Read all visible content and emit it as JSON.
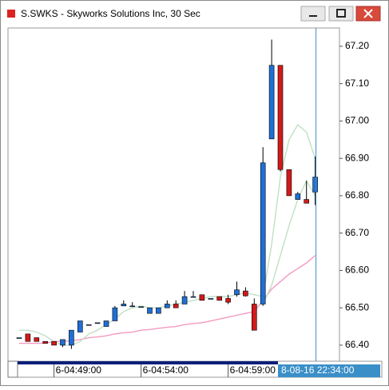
{
  "chart_data": {
    "type": "candlestick",
    "title": "S.SWKS - Skyworks Solutions Inc, 30 Sec",
    "categories": [
      null,
      null,
      null,
      null,
      "6-04:49:00",
      null,
      null,
      null,
      null,
      null,
      null,
      null,
      null,
      null,
      "6-04:54:00",
      null,
      null,
      null,
      null,
      null,
      null,
      null,
      null,
      null,
      "6-04:59:00",
      null,
      null,
      null,
      null,
      null,
      null,
      null,
      null,
      null,
      null
    ],
    "cursor_label": "8-08-16 22:34:00",
    "open": [
      66.42,
      66.43,
      66.42,
      66.41,
      66.41,
      66.4,
      66.4,
      66.435,
      66.455,
      66.46,
      66.45,
      66.465,
      66.505,
      66.505,
      66.503,
      66.485,
      66.485,
      66.5,
      66.51,
      66.51,
      66.53,
      66.535,
      66.525,
      66.53,
      66.525,
      66.535,
      66.545,
      66.51,
      66.51,
      66.952,
      67.149,
      66.87,
      66.79,
      66.79,
      66.81
    ],
    "high": [
      66.42,
      66.43,
      66.42,
      66.41,
      66.41,
      66.415,
      66.44,
      66.465,
      66.455,
      66.46,
      66.465,
      66.505,
      66.52,
      66.515,
      66.503,
      66.5,
      66.5,
      66.52,
      66.52,
      66.545,
      66.545,
      66.535,
      66.525,
      66.53,
      66.535,
      66.57,
      66.555,
      66.525,
      66.93,
      67.218,
      67.149,
      66.87,
      66.81,
      66.84,
      66.905
    ],
    "low": [
      66.42,
      66.41,
      66.41,
      66.405,
      66.4,
      66.395,
      66.39,
      66.435,
      66.455,
      66.46,
      66.45,
      66.465,
      66.505,
      66.505,
      66.503,
      66.485,
      66.485,
      66.5,
      66.5,
      66.51,
      66.53,
      66.52,
      66.525,
      66.52,
      66.51,
      66.53,
      66.53,
      66.44,
      66.505,
      66.952,
      66.865,
      66.8,
      66.79,
      66.78,
      66.775
    ],
    "close": [
      66.42,
      66.41,
      66.41,
      66.405,
      66.4,
      66.415,
      66.44,
      66.465,
      66.455,
      66.46,
      66.465,
      66.5,
      66.51,
      66.505,
      66.503,
      66.5,
      66.5,
      66.51,
      66.5,
      66.53,
      66.53,
      66.52,
      66.525,
      66.52,
      66.515,
      66.548,
      66.532,
      66.44,
      66.888,
      67.149,
      66.87,
      66.8,
      66.805,
      66.78,
      66.85
    ],
    "up_color": "#1f6fd6",
    "down_color": "#d11a1a",
    "series": [
      {
        "color": "#f49ac1",
        "values": [
          66.405,
          66.405,
          66.405,
          66.405,
          66.41,
          66.41,
          66.412,
          66.415,
          66.42,
          66.422,
          66.425,
          66.43,
          66.433,
          66.435,
          66.44,
          66.442,
          66.445,
          66.448,
          66.45,
          66.455,
          66.458,
          66.46,
          66.465,
          66.47,
          66.475,
          66.48,
          66.485,
          66.49,
          66.52,
          66.55,
          66.57,
          66.59,
          66.605,
          66.62,
          66.64
        ]
      },
      {
        "color": "#bfe0c4",
        "values": [
          66.44,
          66.44,
          66.435,
          66.425,
          66.41,
          66.4,
          66.4,
          66.41,
          66.43,
          66.44,
          66.455,
          66.47,
          66.49,
          66.5,
          66.505,
          66.5,
          66.5,
          66.505,
          66.51,
          66.515,
          66.52,
          66.525,
          66.53,
          66.53,
          66.53,
          66.535,
          66.54,
          66.535,
          66.53,
          66.67,
          66.85,
          66.95,
          66.99,
          66.97,
          66.9
        ]
      },
      {
        "color": "#bfe0c4",
        "values": [
          null,
          null,
          null,
          null,
          null,
          null,
          null,
          null,
          null,
          null,
          null,
          null,
          null,
          null,
          null,
          null,
          null,
          null,
          null,
          null,
          null,
          null,
          null,
          null,
          null,
          null,
          null,
          null,
          66.51,
          66.56,
          66.64,
          66.72,
          66.79,
          66.84,
          66.8
        ]
      }
    ],
    "ylim": [
      66.357,
      67.249
    ],
    "yticks": [
      {
        "value": 66.4,
        "label": "66.40"
      },
      {
        "value": 66.5,
        "label": "66.50"
      },
      {
        "value": 66.6,
        "label": "66.60"
      },
      {
        "value": 66.7,
        "label": "66.70"
      },
      {
        "value": 66.8,
        "label": "66.80"
      },
      {
        "value": 66.9,
        "label": "66.90"
      },
      {
        "value": 67.0,
        "label": "67.00"
      },
      {
        "value": 67.1,
        "label": "67.10"
      },
      {
        "value": 67.2,
        "label": "67.20"
      }
    ],
    "cursor_color": "#3a8fc8"
  }
}
